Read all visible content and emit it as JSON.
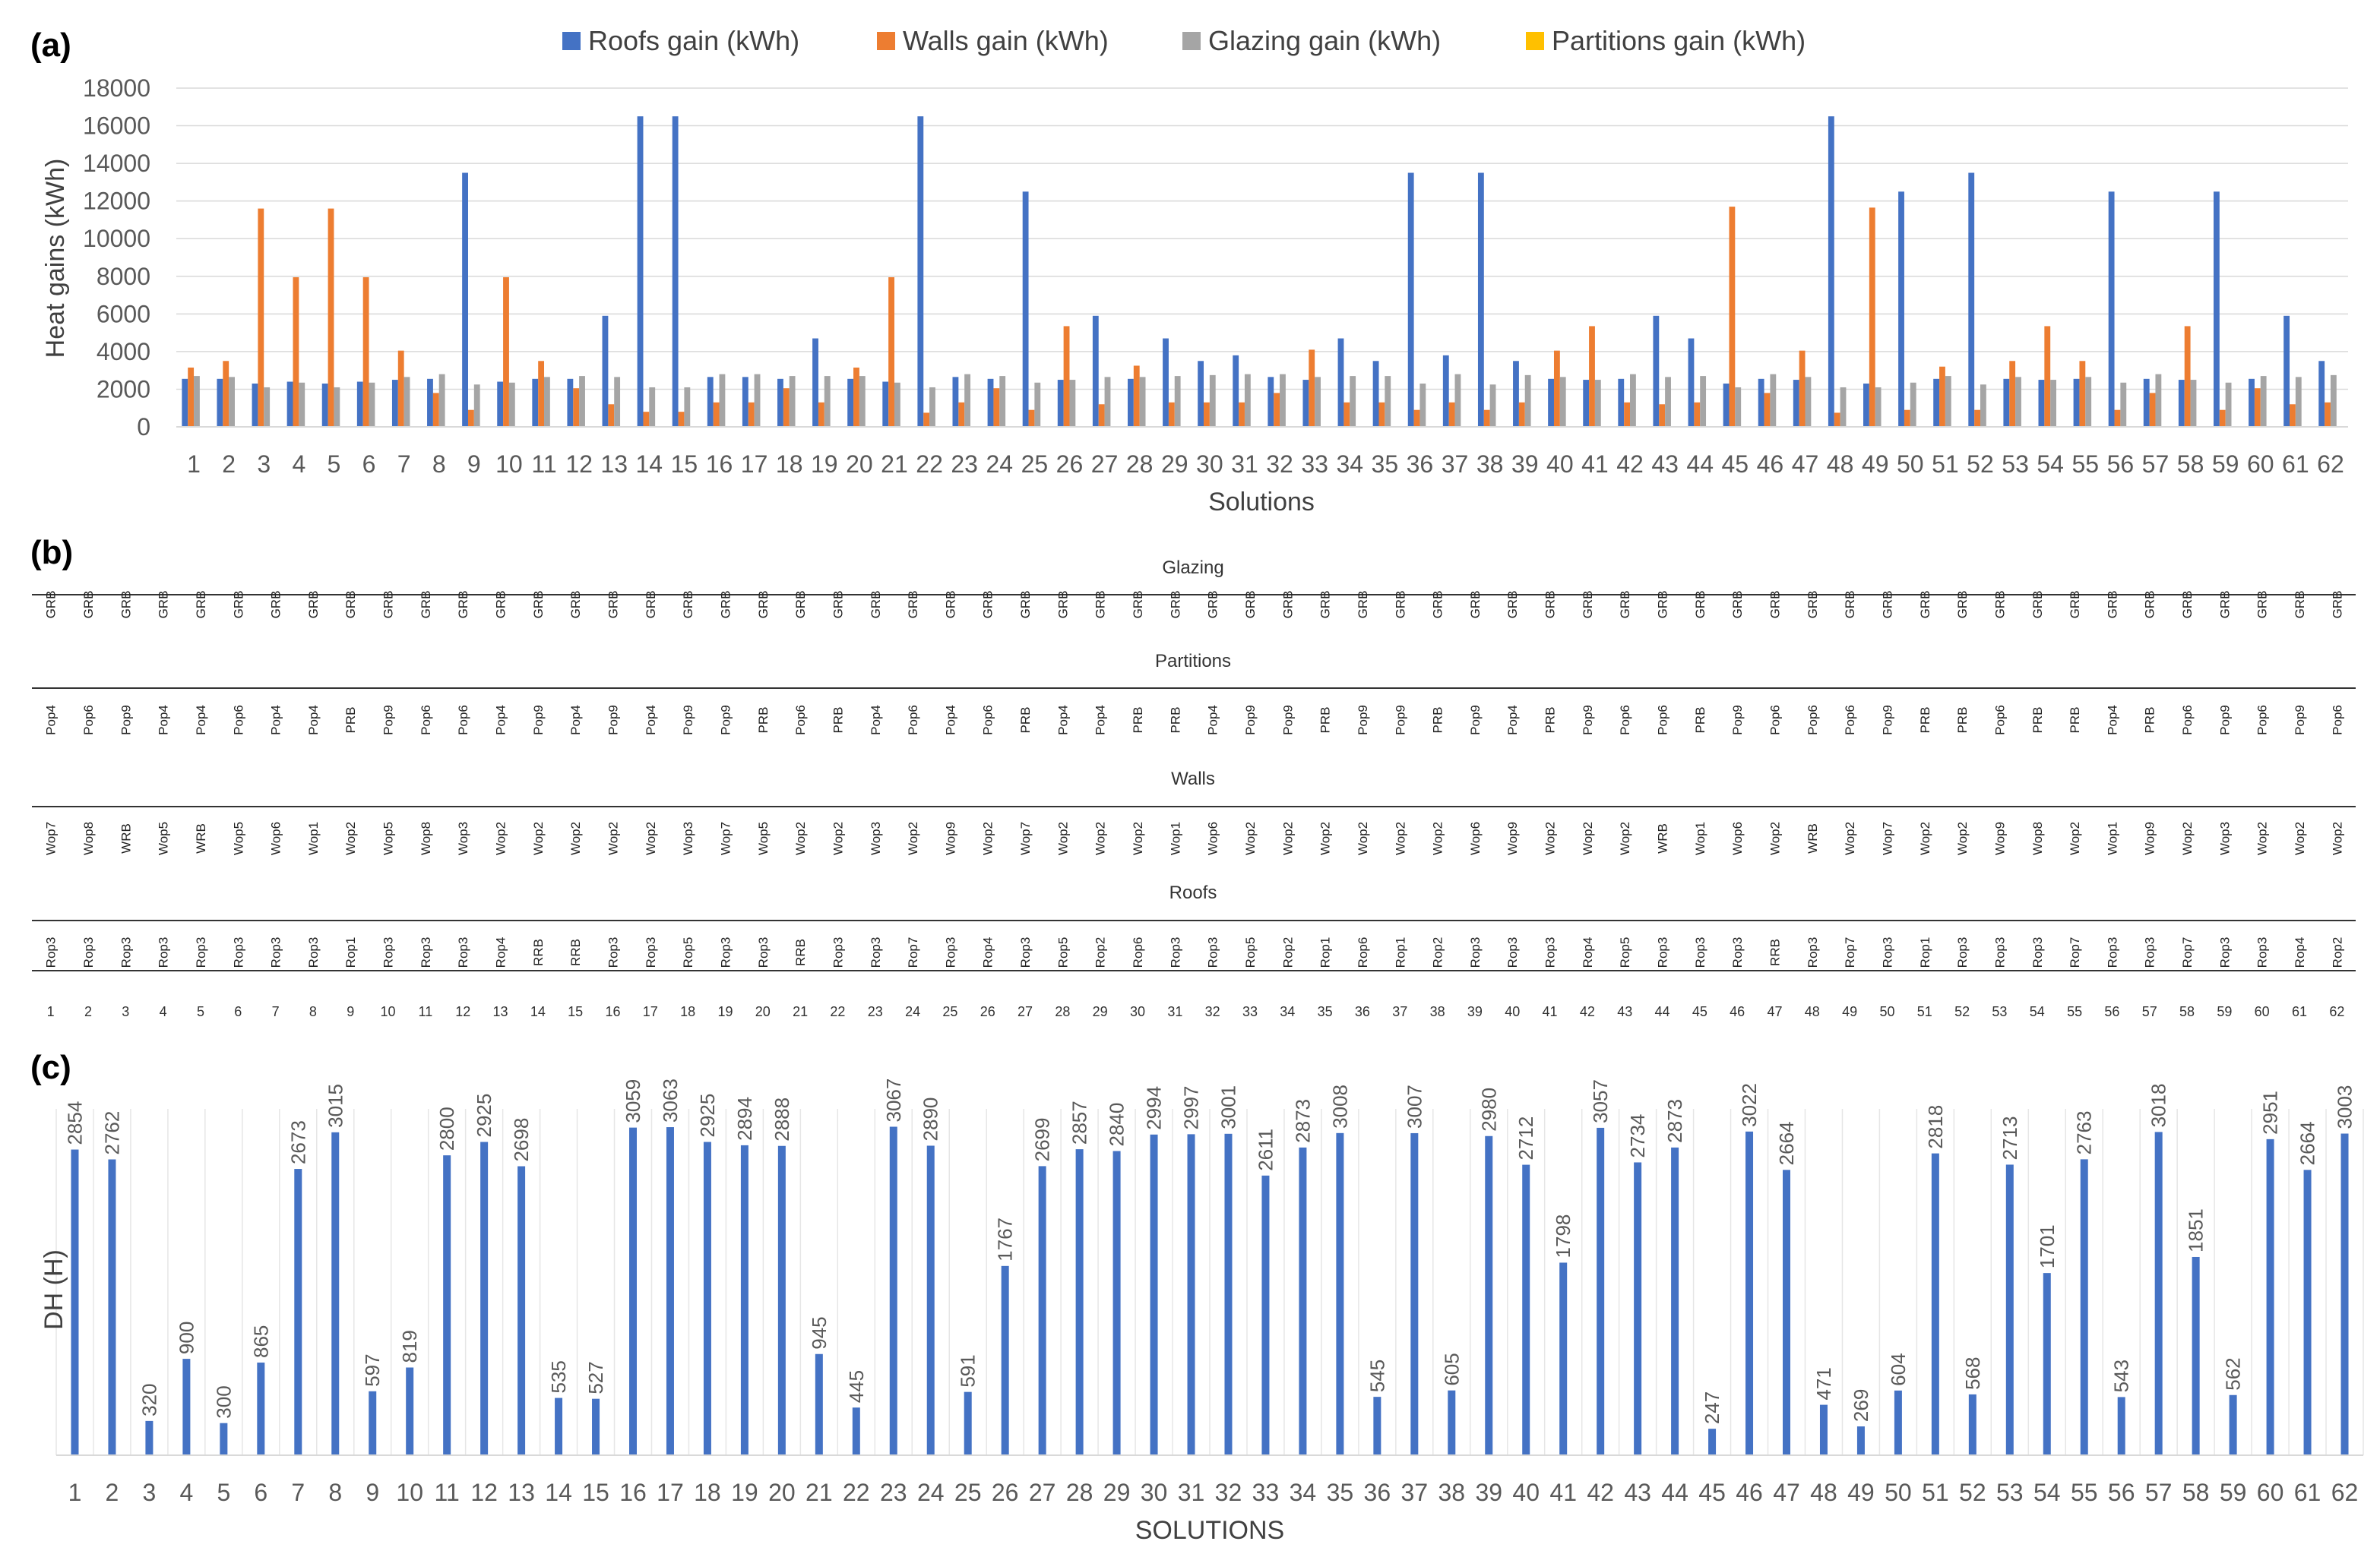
{
  "panels": {
    "a": "(a)",
    "b": "(b)",
    "c": "(c)"
  },
  "chart_data": [
    {
      "type": "bar",
      "panel": "(a)",
      "title": "",
      "xlabel": "Solutions",
      "ylabel": "Heat gains (kWh)",
      "ylim": [
        0,
        18000
      ],
      "yticks": [
        "0",
        "2000",
        "4000",
        "6000",
        "8000",
        "10000",
        "12000",
        "14000",
        "16000",
        "18000"
      ],
      "legend_position": "top",
      "colors": [
        "#4472C4",
        "#ED7D31",
        "#A5A5A5",
        "#FFC000"
      ],
      "categories": [
        "1",
        "2",
        "3",
        "4",
        "5",
        "6",
        "7",
        "8",
        "9",
        "10",
        "11",
        "12",
        "13",
        "14",
        "15",
        "16",
        "17",
        "18",
        "19",
        "20",
        "21",
        "22",
        "23",
        "24",
        "25",
        "26",
        "27",
        "28",
        "29",
        "30",
        "31",
        "32",
        "33",
        "34",
        "35",
        "36",
        "37",
        "38",
        "39",
        "40",
        "41",
        "42",
        "43",
        "44",
        "45",
        "46",
        "47",
        "48",
        "49",
        "50",
        "51",
        "52",
        "53",
        "54",
        "55",
        "56",
        "57",
        "58",
        "59",
        "60",
        "61",
        "62"
      ],
      "series": [
        {
          "name": "Roofs gain (kWh)",
          "values": [
            2550,
            2550,
            2300,
            2400,
            2300,
            2400,
            2500,
            2550,
            13500,
            2400,
            2550,
            2550,
            5900,
            16500,
            16500,
            2650,
            2650,
            2550,
            4700,
            2550,
            2400,
            16500,
            2650,
            2550,
            12500,
            2500,
            5900,
            2550,
            4700,
            3500,
            3800,
            2650,
            2500,
            4700,
            3500,
            13500,
            3800,
            13500,
            3500,
            2550,
            2500,
            2550,
            5900,
            4700,
            2300,
            2550,
            2500,
            16500,
            2300,
            12500,
            2550,
            13500,
            2550,
            2500,
            2550,
            12500,
            2550,
            2500,
            12500,
            2550,
            5900,
            3500
          ]
        },
        {
          "name": "Walls gain (kWh)",
          "values": [
            3150,
            3500,
            11600,
            7950,
            11600,
            7950,
            4050,
            1800,
            900,
            7950,
            3500,
            2050,
            1200,
            800,
            800,
            1300,
            1300,
            2050,
            1300,
            3150,
            7950,
            750,
            1300,
            2050,
            900,
            5350,
            1200,
            3250,
            1300,
            1300,
            1300,
            1800,
            4100,
            1300,
            1300,
            900,
            1300,
            900,
            1300,
            4050,
            5350,
            1300,
            1200,
            1300,
            11700,
            1800,
            4050,
            750,
            11650,
            900,
            3200,
            900,
            3500,
            5350,
            3500,
            900,
            1800,
            5350,
            900,
            2050,
            1200,
            1300
          ]
        },
        {
          "name": "Glazing gain (kWh)",
          "values": [
            2700,
            2650,
            2100,
            2350,
            2100,
            2350,
            2650,
            2800,
            2250,
            2350,
            2650,
            2700,
            2650,
            2100,
            2100,
            2800,
            2800,
            2700,
            2700,
            2700,
            2350,
            2100,
            2800,
            2700,
            2350,
            2500,
            2650,
            2650,
            2700,
            2750,
            2800,
            2800,
            2650,
            2700,
            2700,
            2300,
            2800,
            2250,
            2750,
            2650,
            2500,
            2800,
            2650,
            2700,
            2100,
            2800,
            2650,
            2100,
            2100,
            2350,
            2700,
            2250,
            2650,
            2500,
            2650,
            2350,
            2800,
            2500,
            2350,
            2700,
            2650,
            2750
          ]
        },
        {
          "name": "Partitions gain (kWh)",
          "values": [
            0,
            0,
            0,
            0,
            0,
            0,
            0,
            0,
            0,
            0,
            0,
            0,
            0,
            0,
            0,
            0,
            0,
            0,
            0,
            0,
            0,
            0,
            0,
            0,
            0,
            0,
            0,
            0,
            0,
            0,
            0,
            0,
            0,
            0,
            0,
            0,
            0,
            0,
            0,
            0,
            0,
            0,
            0,
            0,
            0,
            0,
            0,
            0,
            0,
            0,
            0,
            0,
            0,
            0,
            0,
            0,
            0,
            0,
            0,
            0,
            0,
            0
          ]
        }
      ]
    },
    {
      "type": "bar",
      "panel": "(c)",
      "title": "",
      "xlabel": "SOLUTIONS",
      "ylabel": "DH (H)",
      "ylim": [
        0,
        3200
      ],
      "color": "#4472C4",
      "categories": [
        "1",
        "2",
        "3",
        "4",
        "5",
        "6",
        "7",
        "8",
        "9",
        "10",
        "11",
        "12",
        "13",
        "14",
        "15",
        "16",
        "17",
        "18",
        "19",
        "20",
        "21",
        "22",
        "23",
        "24",
        "25",
        "26",
        "27",
        "28",
        "29",
        "30",
        "31",
        "32",
        "33",
        "34",
        "35",
        "36",
        "37",
        "38",
        "39",
        "40",
        "41",
        "42",
        "43",
        "44",
        "45",
        "46",
        "47",
        "48",
        "49",
        "50",
        "51",
        "52",
        "53",
        "54",
        "55",
        "56",
        "57",
        "58",
        "59",
        "60",
        "61",
        "62"
      ],
      "values": [
        2854,
        2762,
        320,
        900,
        300,
        865,
        2673,
        3015,
        597,
        819,
        2800,
        2925,
        2698,
        535,
        527,
        3059,
        3063,
        2925,
        2894,
        2888,
        945,
        445,
        3067,
        2890,
        591,
        1767,
        2699,
        2857,
        2840,
        2994,
        2997,
        3001,
        2611,
        2873,
        3008,
        545,
        3007,
        605,
        2980,
        2712,
        1798,
        3057,
        2734,
        2873,
        247,
        3022,
        2664,
        471,
        269,
        604,
        2818,
        568,
        2713,
        1701,
        2763,
        543,
        3018,
        1851,
        562,
        2951,
        2664,
        3003
      ]
    }
  ],
  "table": {
    "sections": [
      {
        "name": "Glazing",
        "values": [
          "GRB",
          "GRB",
          "GRB",
          "GRB",
          "GRB",
          "GRB",
          "GRB",
          "GRB",
          "GRB",
          "GRB",
          "GRB",
          "GRB",
          "GRB",
          "GRB",
          "GRB",
          "GRB",
          "GRB",
          "GRB",
          "GRB",
          "GRB",
          "GRB",
          "GRB",
          "GRB",
          "GRB",
          "GRB",
          "GRB",
          "GRB",
          "GRB",
          "GRB",
          "GRB",
          "GRB",
          "GRB",
          "GRB",
          "GRB",
          "GRB",
          "GRB",
          "GRB",
          "GRB",
          "GRB",
          "GRB",
          "GRB",
          "GRB",
          "GRB",
          "GRB",
          "GRB",
          "GRB",
          "GRB",
          "GRB",
          "GRB",
          "GRB",
          "GRB",
          "GRB",
          "GRB",
          "GRB",
          "GRB",
          "GRB",
          "GRB",
          "GRB",
          "GRB",
          "GRB",
          "GRB",
          "GRB"
        ]
      },
      {
        "name": "Partitions",
        "values": [
          "Pop4",
          "Pop6",
          "Pop9",
          "Pop4",
          "Pop4",
          "Pop6",
          "Pop4",
          "Pop4",
          "PRB",
          "Pop9",
          "Pop6",
          "Pop6",
          "Pop4",
          "Pop9",
          "Pop4",
          "Pop9",
          "Pop4",
          "Pop9",
          "Pop9",
          "PRB",
          "Pop6",
          "PRB",
          "Pop4",
          "Pop6",
          "Pop4",
          "Pop6",
          "PRB",
          "Pop4",
          "Pop4",
          "PRB",
          "PRB",
          "Pop4",
          "Pop9",
          "Pop9",
          "PRB",
          "Pop9",
          "Pop9",
          "PRB",
          "Pop9",
          "Pop4",
          "PRB",
          "Pop9",
          "Pop6",
          "Pop6",
          "PRB",
          "Pop9",
          "Pop6",
          "Pop6",
          "Pop6",
          "Pop9",
          "PRB",
          "PRB",
          "Pop6",
          "PRB",
          "PRB",
          "Pop4",
          "PRB",
          "Pop6",
          "Pop9",
          "Pop6",
          "Pop9",
          "Pop6"
        ]
      },
      {
        "name": "Walls",
        "values": [
          "Wop7",
          "Wop8",
          "WRB",
          "Wop5",
          "WRB",
          "Wop5",
          "Wop6",
          "Wop1",
          "Wop2",
          "Wop5",
          "Wop8",
          "Wop3",
          "Wop2",
          "Wop2",
          "Wop2",
          "Wop2",
          "Wop2",
          "Wop3",
          "Wop7",
          "Wop5",
          "Wop2",
          "Wop2",
          "Wop3",
          "Wop2",
          "Wop9",
          "Wop2",
          "Wop7",
          "Wop2",
          "Wop2",
          "Wop2",
          "Wop1",
          "Wop6",
          "Wop2",
          "Wop2",
          "Wop2",
          "Wop2",
          "Wop2",
          "Wop2",
          "Wop6",
          "Wop9",
          "Wop2",
          "Wop2",
          "Wop2",
          "WRB",
          "Wop1",
          "Wop6",
          "Wop2",
          "WRB",
          "Wop2",
          "Wop7",
          "Wop2",
          "Wop2",
          "Wop9",
          "Wop8",
          "Wop2",
          "Wop1",
          "Wop9",
          "Wop2",
          "Wop3",
          "Wop2",
          "Wop2",
          "Wop2"
        ]
      },
      {
        "name": "Roofs",
        "values": [
          "Rop3",
          "Rop3",
          "Rop3",
          "Rop3",
          "Rop3",
          "Rop3",
          "Rop3",
          "Rop3",
          "Rop1",
          "Rop3",
          "Rop3",
          "Rop3",
          "Rop4",
          "RRB",
          "RRB",
          "Rop3",
          "Rop3",
          "Rop5",
          "Rop3",
          "Rop3",
          "RRB",
          "Rop3",
          "Rop3",
          "Rop7",
          "Rop3",
          "Rop4",
          "Rop3",
          "Rop5",
          "Rop2",
          "Rop6",
          "Rop3",
          "Rop3",
          "Rop5",
          "Rop2",
          "Rop1",
          "Rop6",
          "Rop1",
          "Rop2",
          "Rop3",
          "Rop3",
          "Rop3",
          "Rop4",
          "Rop5",
          "Rop3",
          "Rop3",
          "Rop3",
          "RRB",
          "Rop3",
          "Rop7",
          "Rop3",
          "Rop1",
          "Rop3",
          "Rop3",
          "Rop3",
          "Rop7",
          "Rop3",
          "Rop3",
          "Rop7",
          "Rop3",
          "Rop3",
          "Rop4",
          "Rop2"
        ]
      }
    ],
    "index": [
      "1",
      "2",
      "3",
      "4",
      "5",
      "6",
      "7",
      "8",
      "9",
      "10",
      "11",
      "12",
      "13",
      "14",
      "15",
      "16",
      "17",
      "18",
      "19",
      "20",
      "21",
      "22",
      "23",
      "24",
      "25",
      "26",
      "27",
      "28",
      "29",
      "30",
      "31",
      "32",
      "33",
      "34",
      "35",
      "36",
      "37",
      "38",
      "39",
      "40",
      "41",
      "42",
      "43",
      "44",
      "45",
      "46",
      "47",
      "48",
      "49",
      "50",
      "51",
      "52",
      "53",
      "54",
      "55",
      "56",
      "57",
      "58",
      "59",
      "60",
      "61",
      "62"
    ]
  }
}
